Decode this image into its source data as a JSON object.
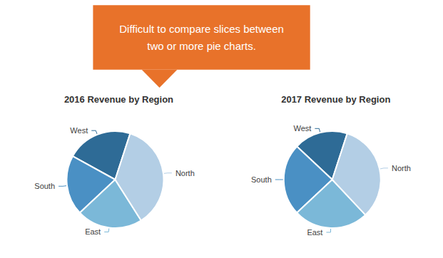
{
  "chart_data": [
    {
      "type": "pie",
      "title": "2016 Revenue by Region",
      "categories": [
        "West",
        "South",
        "East",
        "North"
      ],
      "values": [
        22,
        20,
        22,
        36
      ],
      "colors": [
        "#2E6B96",
        "#4A90C4",
        "#7BB8D8",
        "#B3CEE5"
      ],
      "annotation": "Difficult to compare slices between\ntwo or more pie charts."
    },
    {
      "type": "pie",
      "title": "2017 Revenue by Region",
      "categories": [
        "West",
        "South",
        "East",
        "North"
      ],
      "values": [
        18,
        24,
        25,
        33
      ],
      "colors": [
        "#2E6B96",
        "#4A90C4",
        "#7BB8D8",
        "#B3CEE5"
      ]
    }
  ]
}
